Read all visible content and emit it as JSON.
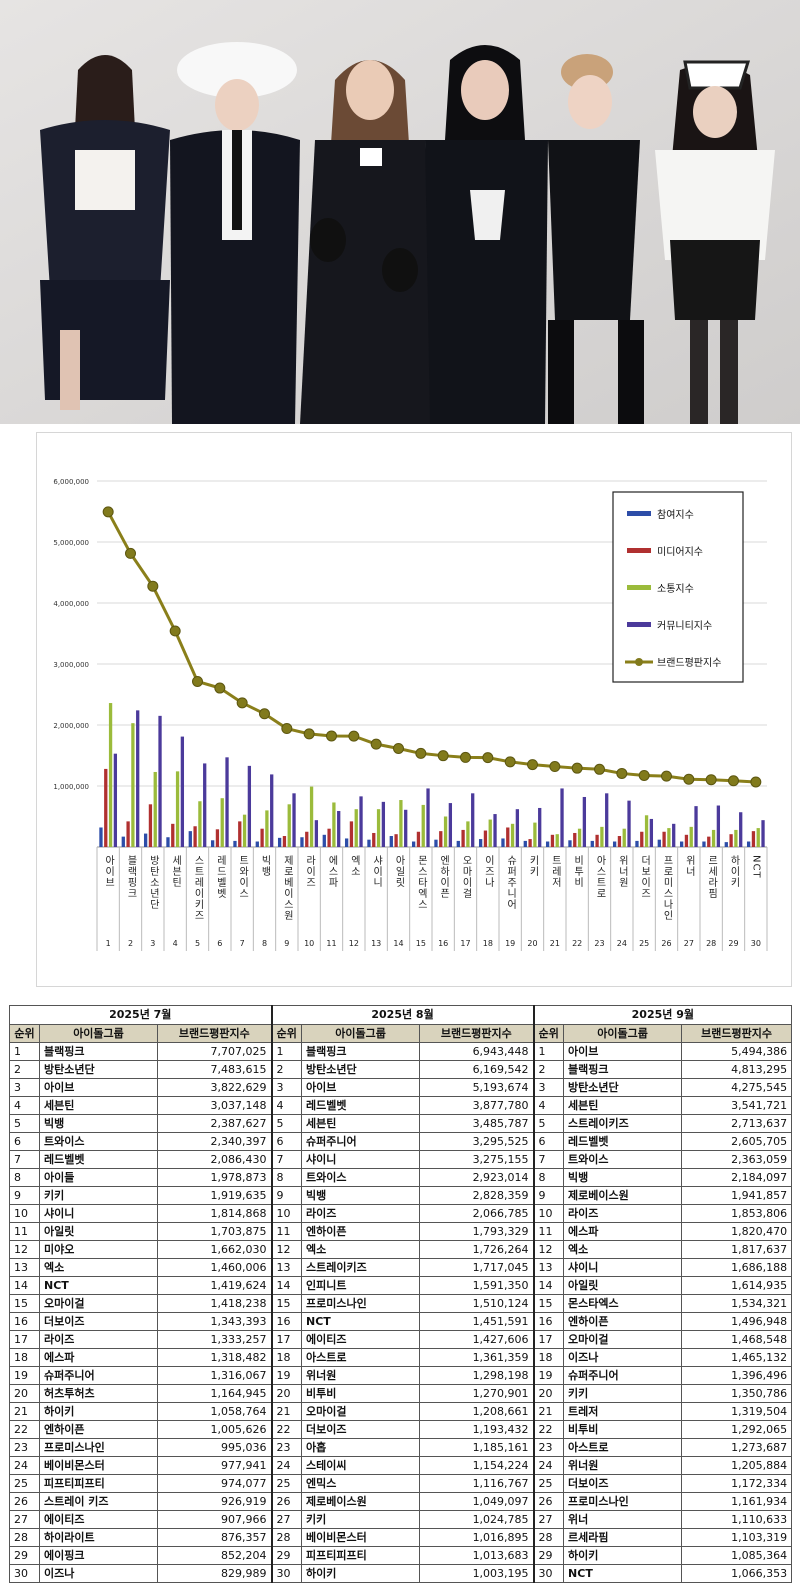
{
  "chart_data": {
    "type": "bar",
    "title": "",
    "xlabel": "",
    "ylabel": "",
    "ylim": [
      0,
      6000000
    ],
    "y_ticks": [
      "6,000,000",
      "5,000,000",
      "4,000,000",
      "3,000,000",
      "2,000,000",
      "1,000,000"
    ],
    "categories": [
      "아이브",
      "블랙핑크",
      "방탄소년단",
      "세븐틴",
      "스트레이키즈",
      "레드벨벳",
      "트와이스",
      "빅뱅",
      "제로베이스원",
      "라이즈",
      "에스파",
      "엑소",
      "샤이니",
      "아일릿",
      "몬스타엑스",
      "엔하이픈",
      "오마이걸",
      "이즈나",
      "슈퍼주니어",
      "키키",
      "트레저",
      "비투비",
      "아스트로",
      "위너원",
      "더보이즈",
      "프로미스나인",
      "위너",
      "르세라핌",
      "하이키",
      "NCT"
    ],
    "rank_labels": [
      "1",
      "2",
      "3",
      "4",
      "5",
      "6",
      "7",
      "8",
      "9",
      "10",
      "11",
      "12",
      "13",
      "14",
      "15",
      "16",
      "17",
      "18",
      "19",
      "20",
      "21",
      "22",
      "23",
      "24",
      "25",
      "26",
      "27",
      "28",
      "29",
      "30"
    ],
    "series": [
      {
        "name": "참여지수",
        "kind": "bar",
        "color": "#2d4da8",
        "values": [
          320000,
          170000,
          220000,
          160000,
          260000,
          110000,
          100000,
          90000,
          150000,
          160000,
          200000,
          140000,
          120000,
          180000,
          90000,
          120000,
          100000,
          130000,
          140000,
          100000,
          90000,
          110000,
          100000,
          90000,
          100000,
          120000,
          90000,
          90000,
          80000,
          90000
        ]
      },
      {
        "name": "미디어지수",
        "kind": "bar",
        "color": "#b03030",
        "values": [
          1280000,
          420000,
          700000,
          380000,
          340000,
          290000,
          420000,
          300000,
          180000,
          250000,
          300000,
          420000,
          230000,
          210000,
          250000,
          260000,
          280000,
          270000,
          320000,
          130000,
          200000,
          230000,
          200000,
          180000,
          250000,
          250000,
          200000,
          170000,
          210000,
          260000
        ]
      },
      {
        "name": "소통지수",
        "kind": "bar",
        "color": "#9bbb3b",
        "values": [
          2360000,
          2030000,
          1230000,
          1240000,
          750000,
          800000,
          530000,
          600000,
          700000,
          990000,
          730000,
          620000,
          620000,
          770000,
          690000,
          500000,
          420000,
          450000,
          380000,
          400000,
          210000,
          300000,
          330000,
          300000,
          520000,
          310000,
          330000,
          280000,
          280000,
          310000
        ]
      },
      {
        "name": "커뮤니티지수",
        "kind": "bar",
        "color": "#4b3a9b",
        "values": [
          1530000,
          2240000,
          2150000,
          1810000,
          1370000,
          1470000,
          1330000,
          1190000,
          880000,
          440000,
          590000,
          830000,
          740000,
          610000,
          960000,
          720000,
          880000,
          540000,
          620000,
          640000,
          960000,
          820000,
          880000,
          760000,
          460000,
          380000,
          670000,
          680000,
          570000,
          440000
        ]
      },
      {
        "name": "브랜드평판지수",
        "kind": "line",
        "color": "#8a7f1a",
        "values": [
          5494386,
          4813295,
          4275545,
          3541721,
          2713637,
          2605705,
          2363059,
          2184097,
          1941857,
          1853806,
          1820470,
          1817637,
          1686188,
          1614935,
          1534321,
          1496948,
          1468548,
          1465132,
          1396496,
          1350786,
          1319504,
          1292065,
          1273687,
          1205884,
          1172334,
          1161934,
          1110633,
          1103319,
          1085364,
          1066353
        ]
      }
    ],
    "legend_position": "right"
  },
  "table": {
    "months": [
      "2025년 7월",
      "2025년 8월",
      "2025년 9월"
    ],
    "headers": [
      "순위",
      "아이돌그룹",
      "브랜드평판지수"
    ],
    "rows": [
      [
        "1",
        "블랙핑크",
        "7,707,025",
        "1",
        "블랙핑크",
        "6,943,448",
        "1",
        "아이브",
        "5,494,386"
      ],
      [
        "2",
        "방탄소년단",
        "7,483,615",
        "2",
        "방탄소년단",
        "6,169,542",
        "2",
        "블랙핑크",
        "4,813,295"
      ],
      [
        "3",
        "아이브",
        "3,822,629",
        "3",
        "아이브",
        "5,193,674",
        "3",
        "방탄소년단",
        "4,275,545"
      ],
      [
        "4",
        "세븐틴",
        "3,037,148",
        "4",
        "레드벨벳",
        "3,877,780",
        "4",
        "세븐틴",
        "3,541,721"
      ],
      [
        "5",
        "빅뱅",
        "2,387,627",
        "5",
        "세븐틴",
        "3,485,787",
        "5",
        "스트레이키즈",
        "2,713,637"
      ],
      [
        "6",
        "트와이스",
        "2,340,397",
        "6",
        "슈퍼주니어",
        "3,295,525",
        "6",
        "레드벨벳",
        "2,605,705"
      ],
      [
        "7",
        "레드벨벳",
        "2,086,430",
        "7",
        "샤이니",
        "3,275,155",
        "7",
        "트와이스",
        "2,363,059"
      ],
      [
        "8",
        "아이들",
        "1,978,873",
        "8",
        "트와이스",
        "2,923,014",
        "8",
        "빅뱅",
        "2,184,097"
      ],
      [
        "9",
        "키키",
        "1,919,635",
        "9",
        "빅뱅",
        "2,828,359",
        "9",
        "제로베이스원",
        "1,941,857"
      ],
      [
        "10",
        "샤이니",
        "1,814,868",
        "10",
        "라이즈",
        "2,066,785",
        "10",
        "라이즈",
        "1,853,806"
      ],
      [
        "11",
        "아일릿",
        "1,703,875",
        "11",
        "엔하이픈",
        "1,793,329",
        "11",
        "에스파",
        "1,820,470"
      ],
      [
        "12",
        "미야오",
        "1,662,030",
        "12",
        "엑소",
        "1,726,264",
        "12",
        "엑소",
        "1,817,637"
      ],
      [
        "13",
        "엑소",
        "1,460,006",
        "13",
        "스트레이키즈",
        "1,717,045",
        "13",
        "샤이니",
        "1,686,188"
      ],
      [
        "14",
        "NCT",
        "1,419,624",
        "14",
        "인피니트",
        "1,591,350",
        "14",
        "아일릿",
        "1,614,935"
      ],
      [
        "15",
        "오마이걸",
        "1,418,238",
        "15",
        "프로미스나인",
        "1,510,124",
        "15",
        "몬스타엑스",
        "1,534,321"
      ],
      [
        "16",
        "더보이즈",
        "1,343,393",
        "16",
        "NCT",
        "1,451,591",
        "16",
        "엔하이픈",
        "1,496,948"
      ],
      [
        "17",
        "라이즈",
        "1,333,257",
        "17",
        "에이티즈",
        "1,427,606",
        "17",
        "오마이걸",
        "1,468,548"
      ],
      [
        "18",
        "에스파",
        "1,318,482",
        "18",
        "아스트로",
        "1,361,359",
        "18",
        "이즈나",
        "1,465,132"
      ],
      [
        "19",
        "슈퍼주니어",
        "1,316,067",
        "19",
        "위너원",
        "1,298,198",
        "19",
        "슈퍼주니어",
        "1,396,496"
      ],
      [
        "20",
        "허츠투허츠",
        "1,164,945",
        "20",
        "비투비",
        "1,270,901",
        "20",
        "키키",
        "1,350,786"
      ],
      [
        "21",
        "하이키",
        "1,058,764",
        "21",
        "오마이걸",
        "1,208,661",
        "21",
        "트레저",
        "1,319,504"
      ],
      [
        "22",
        "엔하이픈",
        "1,005,626",
        "22",
        "더보이즈",
        "1,193,432",
        "22",
        "비투비",
        "1,292,065"
      ],
      [
        "23",
        "프로미스나인",
        "995,036",
        "23",
        "아홉",
        "1,185,161",
        "23",
        "아스트로",
        "1,273,687"
      ],
      [
        "24",
        "베이비몬스터",
        "977,941",
        "24",
        "스테이씨",
        "1,154,224",
        "24",
        "위너원",
        "1,205,884"
      ],
      [
        "25",
        "피프티피프티",
        "974,077",
        "25",
        "엔믹스",
        "1,116,767",
        "25",
        "더보이즈",
        "1,172,334"
      ],
      [
        "26",
        "스트레이 키즈",
        "926,919",
        "26",
        "제로베이스원",
        "1,049,097",
        "26",
        "프로미스나인",
        "1,161,934"
      ],
      [
        "27",
        "에이티즈",
        "907,966",
        "27",
        "키키",
        "1,024,785",
        "27",
        "위너",
        "1,110,633"
      ],
      [
        "28",
        "하이라이트",
        "876,357",
        "28",
        "베이비몬스터",
        "1,016,895",
        "28",
        "르세라핌",
        "1,103,319"
      ],
      [
        "29",
        "에이핑크",
        "852,204",
        "29",
        "피프티피프티",
        "1,013,683",
        "29",
        "하이키",
        "1,085,364"
      ],
      [
        "30",
        "이즈나",
        "829,989",
        "30",
        "하이키",
        "1,003,195",
        "30",
        "NCT",
        "1,066,353"
      ]
    ]
  }
}
